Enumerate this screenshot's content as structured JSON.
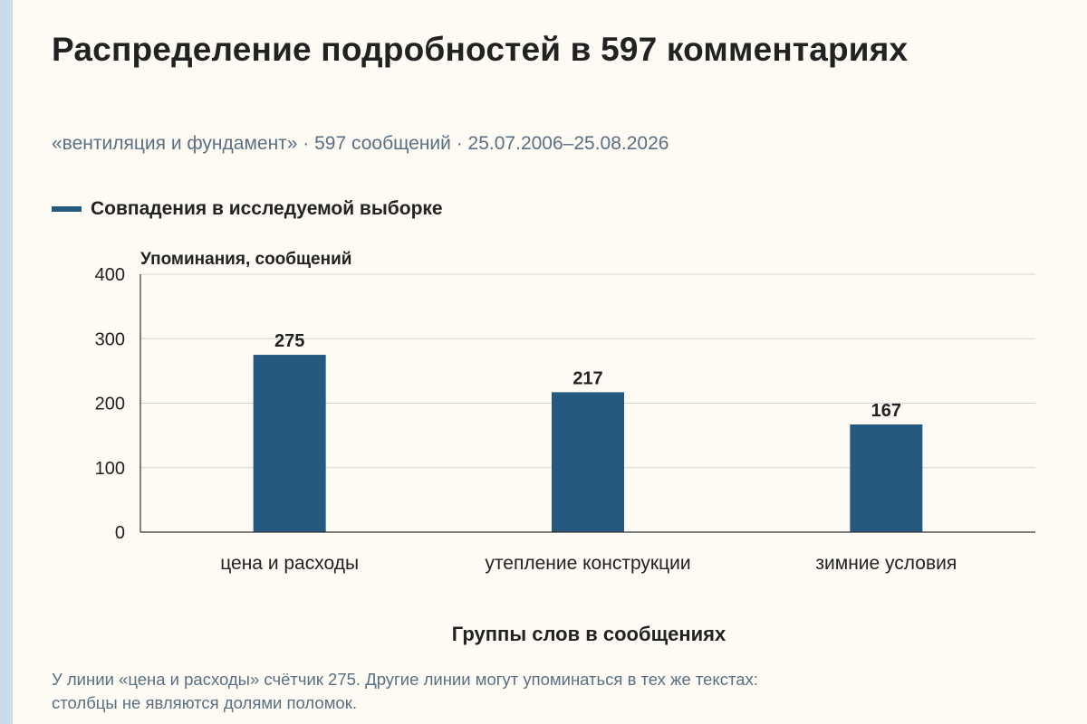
{
  "title": "Распределение подробностей в 597 комментариях",
  "subtitle": "«вентиляция и фундамент» · 597 сообщений · 25.07.2006–25.08.2026",
  "legend": {
    "label": "Совпадения в исследуемой выборке"
  },
  "note": {
    "line1": "У линии «цена и расходы» счётчик 275. Другие линии могут упоминаться в тех же текстах:",
    "line2": "столбцы не являются долями поломок."
  },
  "colors": {
    "background": "#fdfbf3",
    "bar": "#255a80",
    "grid": "#d4d4d4",
    "axis": "#333333",
    "muted_text": "#5b6f82",
    "stripe": "#c9dce9"
  },
  "chart_data": {
    "type": "bar",
    "categories": [
      "цена и расходы",
      "утепление конструкции",
      "зимние условия"
    ],
    "series": [
      {
        "name": "Совпадения в исследуемой выборке",
        "values": [
          275,
          217,
          167
        ]
      }
    ],
    "ylabel": "Упоминания, сообщений",
    "xlabel": "Группы слов в сообщениях",
    "ylim": [
      0,
      400
    ],
    "yticks": [
      0,
      100,
      200,
      300,
      400
    ],
    "grid": true,
    "legend_position": "top-left",
    "data_labels": true
  }
}
